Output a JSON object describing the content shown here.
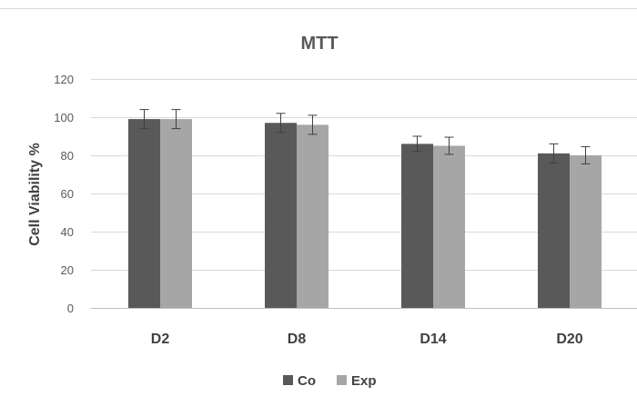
{
  "chart_data": {
    "type": "bar",
    "title": "MTT",
    "xlabel": "",
    "ylabel": "Cell Viability %",
    "categories": [
      "D2",
      "D8",
      "D14",
      "D20"
    ],
    "ylim": [
      0,
      120
    ],
    "yticks": [
      0,
      20,
      40,
      60,
      80,
      100,
      120
    ],
    "grid": true,
    "legend_position": "bottom",
    "series": [
      {
        "name": "Co",
        "color": "#595959",
        "values": [
          99,
          97,
          86,
          81
        ],
        "errors": [
          5,
          5,
          4,
          5
        ]
      },
      {
        "name": "Exp",
        "color": "#a6a6a6",
        "values": [
          99,
          96,
          85,
          80
        ],
        "errors": [
          5,
          5,
          4.5,
          4.5
        ]
      }
    ]
  }
}
